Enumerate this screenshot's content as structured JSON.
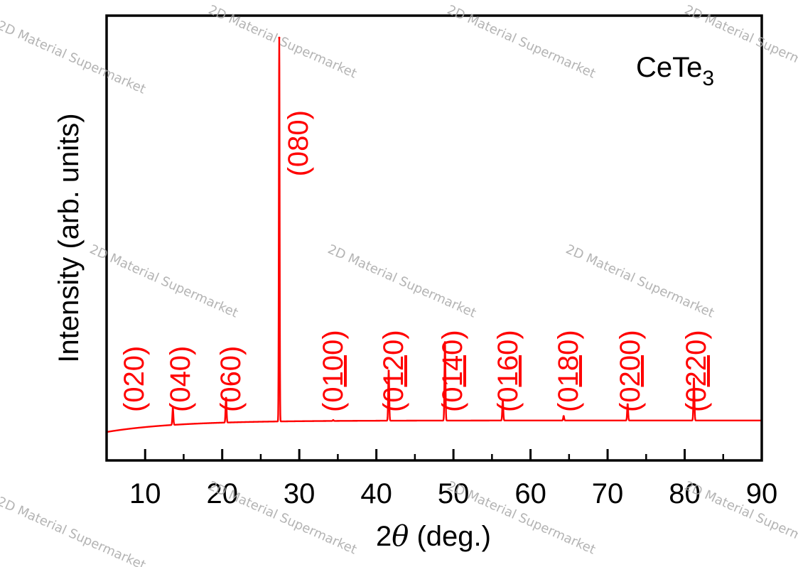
{
  "chart_data": {
    "type": "line",
    "xlabel_prefix": "2",
    "xlabel_symbol": "θ",
    "xlabel_suffix": " (deg.)",
    "ylabel": "Intensity (arb. units)",
    "sample_formula": "CeTe",
    "sample_subscript": "3",
    "xlim": [
      5,
      90
    ],
    "ylim": [
      0,
      100
    ],
    "x_ticks": [
      10,
      20,
      30,
      40,
      50,
      60,
      70,
      80,
      90
    ],
    "series_color": "#ff0000",
    "baseline": {
      "start": 3.0,
      "end": 0.0
    },
    "peaks": [
      {
        "x": 13.6,
        "y": 4.3,
        "label": "(020)",
        "underline": ""
      },
      {
        "x": 20.5,
        "y": 6.4,
        "label": "(040)",
        "underline": ""
      },
      {
        "x": 27.4,
        "y": 100.0,
        "label": "(060)",
        "underline": ""
      },
      {
        "x": 34.4,
        "y": 0.2,
        "label": "(080)",
        "underline": ""
      },
      {
        "x": 41.6,
        "y": 13.0,
        "label": "(0100)",
        "underline": "10"
      },
      {
        "x": 48.9,
        "y": 20.4,
        "label": "(0120)",
        "underline": "12"
      },
      {
        "x": 56.4,
        "y": 5.3,
        "label": "(0140)",
        "underline": "14"
      },
      {
        "x": 64.3,
        "y": 1.1,
        "label": "(0160)",
        "underline": "16"
      },
      {
        "x": 72.6,
        "y": 4.2,
        "label": "(0180)",
        "underline": "18"
      },
      {
        "x": 81.2,
        "y": 10.9,
        "label": "(0200)",
        "underline": "20"
      },
      {
        "x": 90.0,
        "y": 0.0,
        "label": "(0220)",
        "underline": "22"
      }
    ],
    "watermark": "2D Material Supermarket"
  }
}
